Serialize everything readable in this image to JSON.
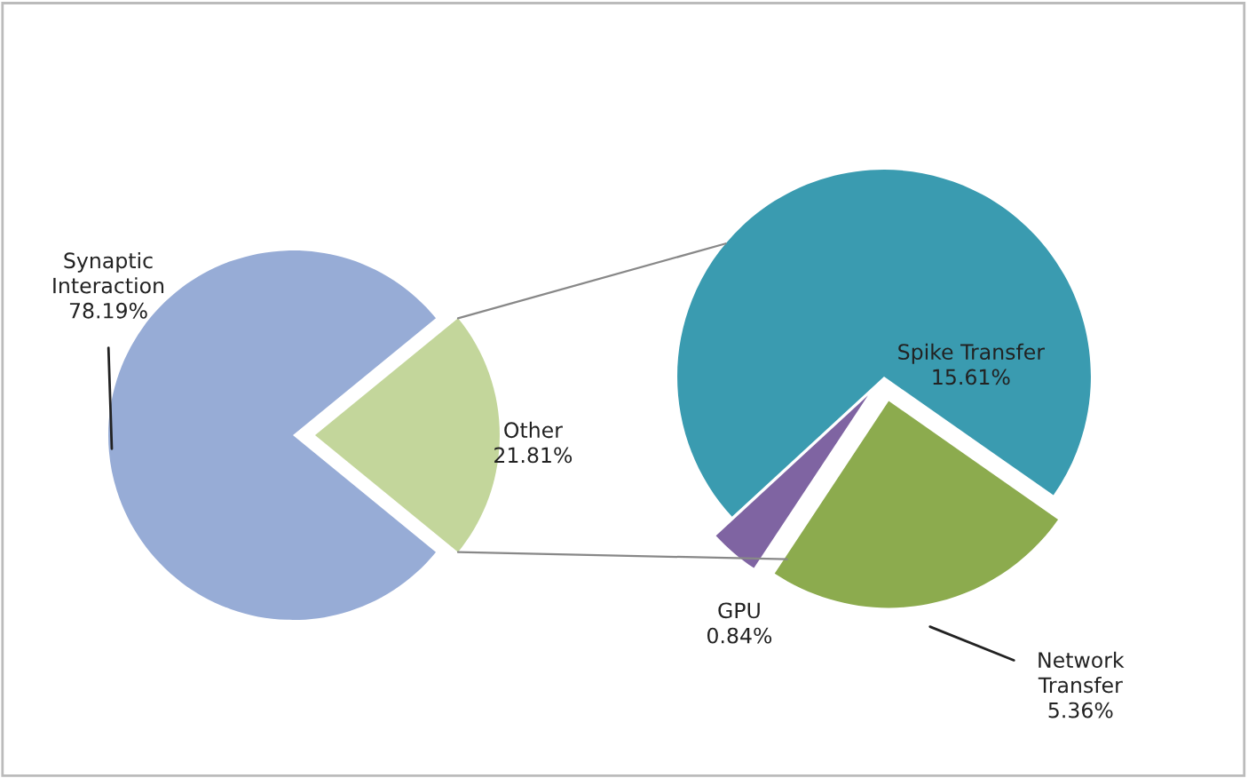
{
  "chart_data": [
    {
      "type": "pie",
      "categories": [
        "Synaptic Interaction",
        "Other"
      ],
      "values": [
        78.19,
        21.81
      ],
      "colors": [
        "#97acd6",
        "#c3d69b"
      ],
      "value_labels": [
        "78.19%",
        "21.81%"
      ]
    },
    {
      "type": "pie",
      "categories": [
        "Spike Transfer",
        "GPU",
        "Network Transfer"
      ],
      "values": [
        15.61,
        0.84,
        5.36
      ],
      "colors": [
        "#3a9bb0",
        "#7f64a2",
        "#8cab4e"
      ],
      "value_labels": [
        "15.61%",
        "0.84%",
        "5.36%"
      ]
    }
  ]
}
